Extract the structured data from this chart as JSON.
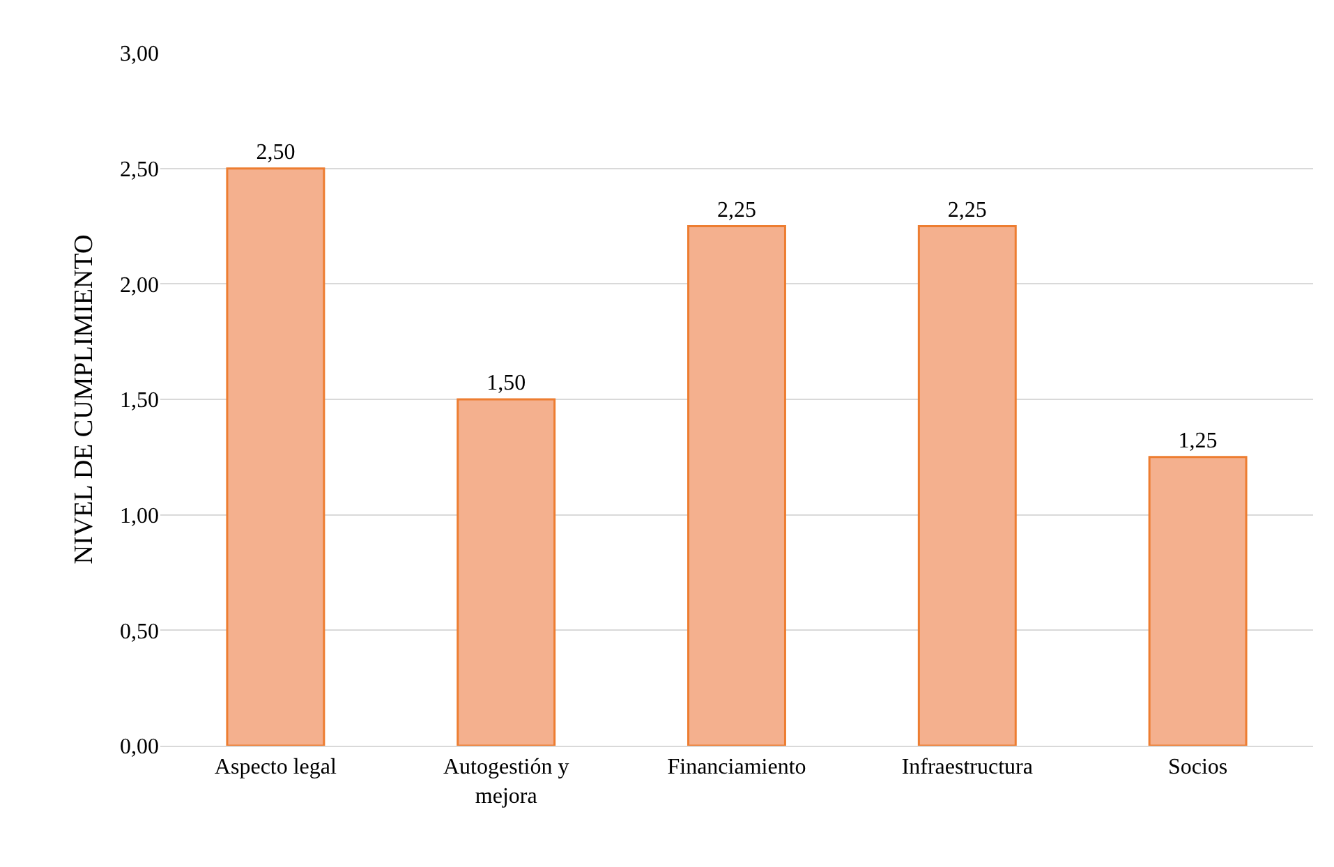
{
  "chart_data": {
    "type": "bar",
    "ylabel": "NIVEL DE CUMPLIMIENTO",
    "categories": [
      "Aspecto legal",
      "Autogestión y mejora",
      "Financiamiento",
      "Infraestructura",
      "Socios"
    ],
    "values": [
      2.5,
      1.5,
      2.25,
      2.25,
      1.25
    ],
    "value_labels": [
      "2,50",
      "1,50",
      "2,25",
      "2,25",
      "1,25"
    ],
    "color": "#f4b08e",
    "ylim": [
      0,
      3
    ],
    "yticks": [
      {
        "value": 0,
        "label": "0,00"
      },
      {
        "value": 0.5,
        "label": "0,50"
      },
      {
        "value": 1,
        "label": "1,00"
      },
      {
        "value": 1.5,
        "label": "1,50"
      },
      {
        "value": 2,
        "label": "2,00"
      },
      {
        "value": 2.5,
        "label": "2,50"
      },
      {
        "value": 3,
        "label": "3,00"
      }
    ],
    "grid": "y"
  }
}
